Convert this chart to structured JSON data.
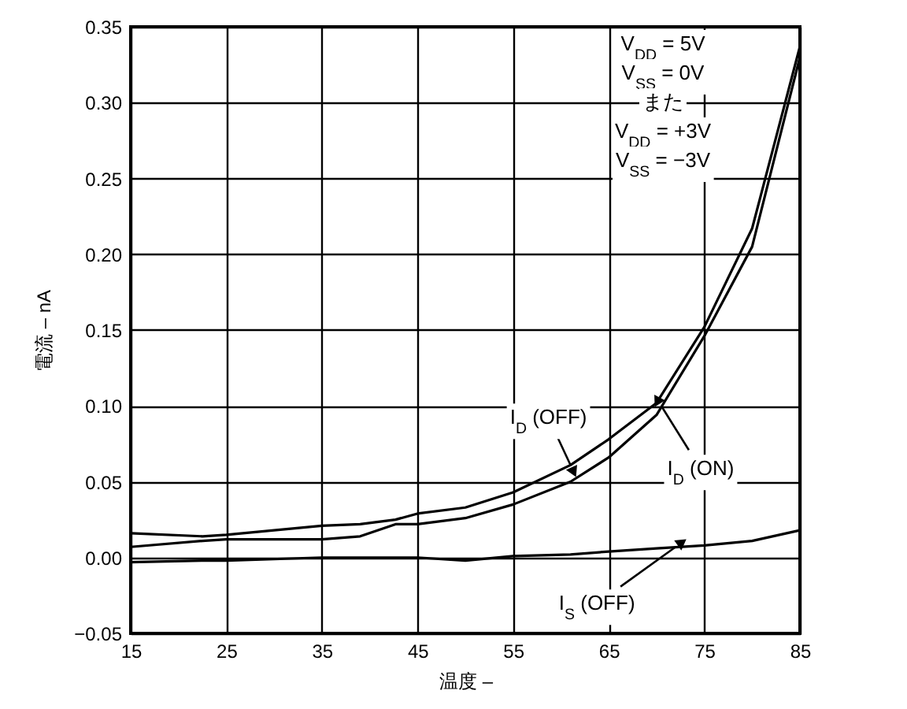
{
  "chart_data": {
    "type": "line",
    "xlabel": "温度 –",
    "ylabel": "電流 – nA",
    "x": [
      15,
      22.5,
      25,
      35,
      39,
      42.7,
      45,
      50,
      55,
      61,
      65,
      70,
      75,
      80,
      85
    ],
    "series": [
      {
        "color": "#000000",
        "values": [
          0.016,
          0.014,
          0.015,
          0.021,
          0.022,
          0.025,
          0.029,
          0.033,
          0.043,
          0.061,
          0.078,
          0.102,
          0.152,
          0.217,
          0.337
        ]
      },
      {
        "color": "#000000",
        "values": [
          0.007,
          0.011,
          0.012,
          0.012,
          0.014,
          0.022,
          0.022,
          0.026,
          0.035,
          0.05,
          0.066,
          0.094,
          0.146,
          0.205,
          0.33
        ]
      },
      {
        "color": "#000000",
        "values": [
          -0.003,
          -0.002,
          -0.002,
          0.0,
          0.0,
          0.0,
          0.0,
          -0.002,
          0.001,
          0.002,
          0.004,
          0.006,
          0.008,
          0.011,
          0.018
        ]
      }
    ],
    "xlim": [
      15,
      85
    ],
    "xticks": [
      15,
      25,
      35,
      45,
      55,
      65,
      75,
      85
    ],
    "ylim": [
      -0.05,
      0.35
    ],
    "yticks": [
      {
        "value": -0.05,
        "label": "−0.05"
      },
      {
        "value": 0,
        "label": "0.00"
      },
      {
        "value": 0.05,
        "label": "0.05"
      },
      {
        "value": 0.1,
        "label": "0.10"
      },
      {
        "value": 0.15,
        "label": "0.15"
      },
      {
        "value": 0.2,
        "label": "0.20"
      },
      {
        "value": 0.25,
        "label": "0.25"
      },
      {
        "value": 0.3,
        "label": "0.30"
      },
      {
        "value": 0.35,
        "label": "0.35"
      }
    ],
    "grid": true,
    "marker": "none",
    "line_style": "solid",
    "annotations": [
      "V$_{DD}$ = 5V",
      "V$_{SS}$ = 0V",
      "また",
      "V$_{DD}$ = +3V",
      "V$_{SS}$ = −3V",
      {
        "text": "I$_{D}$ (OFF)",
        "x": 61,
        "y": 0.061
      },
      {
        "text": "I$_{D}$ (ON)",
        "x": 70.5,
        "y": 0.1
      },
      {
        "text": "I$_{S}$ (OFF)",
        "x": 72,
        "y": 0.007
      }
    ]
  }
}
